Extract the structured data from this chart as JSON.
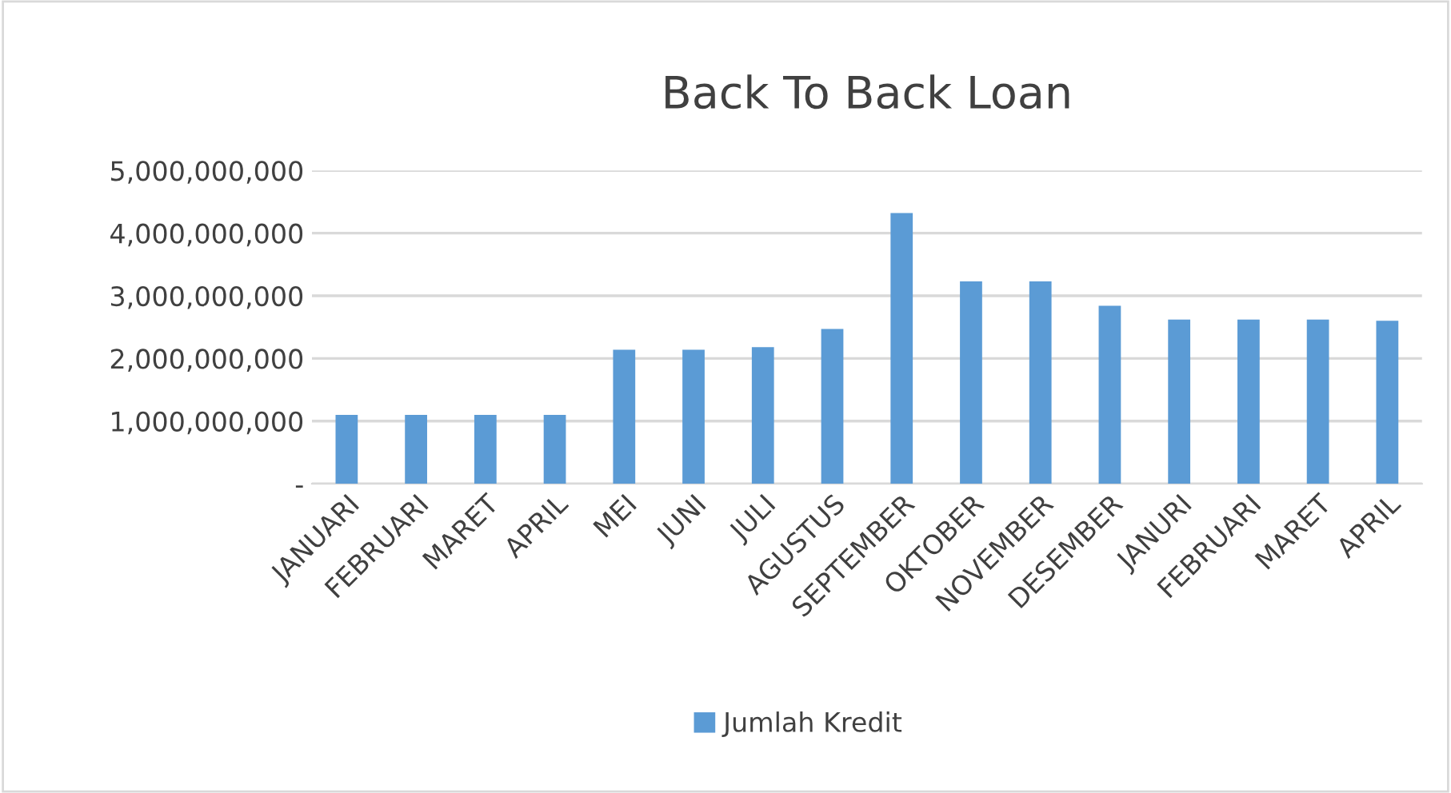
{
  "chart_data": {
    "type": "bar",
    "title": "Back To Back Loan",
    "categories": [
      "JANUARI",
      "FEBRUARI",
      "MARET",
      "APRIL",
      "MEI",
      "JUNI",
      "JULI",
      "AGUSTUS",
      "SEPTEMBER",
      "OKTOBER",
      "NOVEMBER",
      "DESEMBER",
      "JANURI",
      "FEBRUARI",
      "MARET",
      "APRIL"
    ],
    "series": [
      {
        "name": "Jumlah Kredit",
        "color": "#5b9bd5",
        "values": [
          1100000000,
          1100000000,
          1100000000,
          1100000000,
          2140000000,
          2140000000,
          2180000000,
          2470000000,
          4320000000,
          3230000000,
          3230000000,
          2840000000,
          2620000000,
          2620000000,
          2620000000,
          2600000000
        ]
      }
    ],
    "ylim": [
      0,
      5000000000
    ],
    "yticks": [
      {
        "value": 0,
        "label": "-"
      },
      {
        "value": 1000000000,
        "label": "1,000,000,000"
      },
      {
        "value": 2000000000,
        "label": "2,000,000,000"
      },
      {
        "value": 3000000000,
        "label": "3,000,000,000"
      },
      {
        "value": 4000000000,
        "label": "4,000,000,000"
      },
      {
        "value": 5000000000,
        "label": "5,000,000,000"
      }
    ],
    "grid": "y",
    "legend": "bottom"
  }
}
